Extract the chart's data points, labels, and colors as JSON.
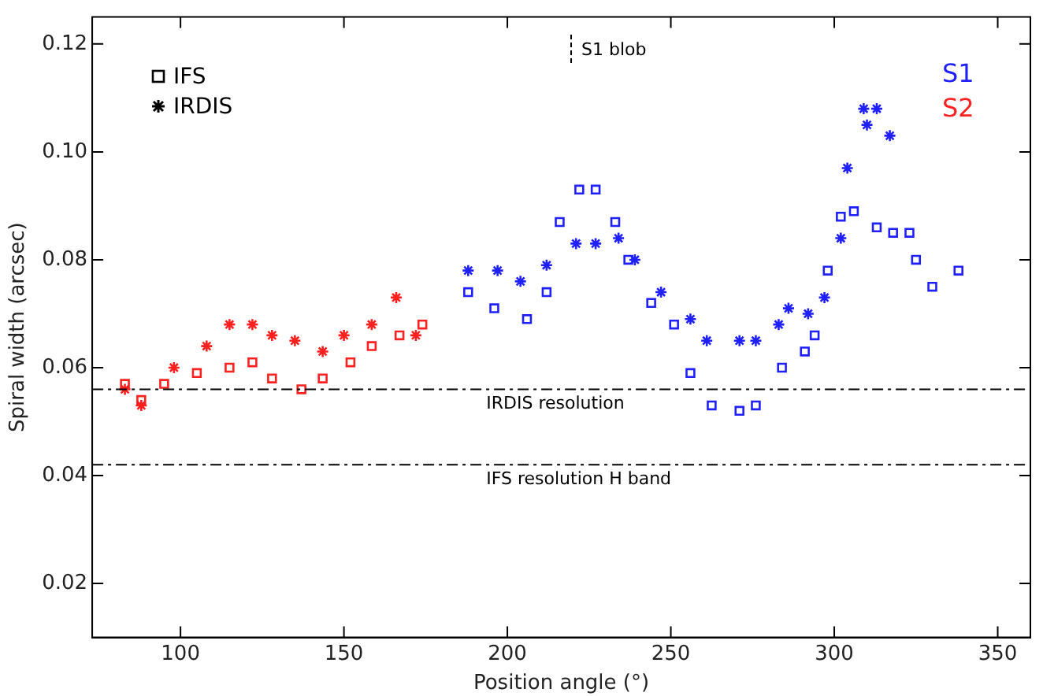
{
  "chart_data": {
    "type": "scatter",
    "xlabel": "Position angle (°)",
    "ylabel": "Spiral width (arcsec)",
    "xlim": [
      73,
      360
    ],
    "xticks": [
      100,
      150,
      200,
      250,
      300,
      350
    ],
    "ylim": [
      0.01,
      0.125
    ],
    "yticks": [
      0.02,
      0.04,
      0.06,
      0.08,
      {
        "value": 0.1,
        "label": "0.10"
      },
      0.12
    ],
    "grid": false,
    "series": [
      {
        "color": "#ff2020",
        "marker": "square",
        "x": [
          83,
          88,
          95,
          105,
          115,
          122,
          128,
          137,
          143.5,
          152,
          158.5,
          167,
          174
        ],
        "values": [
          0.057,
          0.054,
          0.057,
          0.059,
          0.06,
          0.061,
          0.058,
          0.056,
          0.058,
          0.061,
          0.064,
          0.066,
          0.068
        ]
      },
      {
        "color": "#ff2020",
        "marker": "cross",
        "x": [
          83,
          88,
          98,
          108,
          115,
          122,
          128,
          135,
          143.5,
          150,
          158.5,
          166,
          172
        ],
        "values": [
          0.056,
          0.053,
          0.06,
          0.064,
          0.068,
          0.068,
          0.066,
          0.065,
          0.063,
          0.066,
          0.068,
          0.073,
          0.066
        ]
      },
      {
        "color": "#2020ff",
        "marker": "square",
        "x": [
          188,
          196,
          206,
          212,
          216,
          222,
          227,
          233,
          237,
          244,
          251,
          256,
          262.5,
          271,
          276,
          284,
          291,
          294,
          298,
          302,
          306,
          313,
          318,
          323,
          325,
          330,
          338
        ],
        "values": [
          0.074,
          0.071,
          0.069,
          0.074,
          0.087,
          0.093,
          0.093,
          0.087,
          0.08,
          0.072,
          0.068,
          0.059,
          0.053,
          0.052,
          0.053,
          0.06,
          0.063,
          0.066,
          0.078,
          0.088,
          0.089,
          0.086,
          0.085,
          0.085,
          0.08,
          0.075,
          0.078
        ]
      },
      {
        "color": "#2020ff",
        "marker": "cross",
        "x": [
          188,
          197,
          204,
          212,
          221,
          227,
          234,
          239,
          247,
          256,
          261,
          271,
          276,
          283,
          286,
          292,
          297,
          302,
          304,
          309,
          310,
          313,
          317
        ],
        "values": [
          0.078,
          0.078,
          0.076,
          0.079,
          0.083,
          0.083,
          0.084,
          0.08,
          0.074,
          0.069,
          0.065,
          0.065,
          0.065,
          0.068,
          0.071,
          0.07,
          0.073,
          0.084,
          0.097,
          0.108,
          0.105,
          0.108,
          0.103
        ]
      }
    ],
    "ref_lines": [
      {
        "axis": "y",
        "value": 0.056,
        "label": "IRDIS resolution",
        "color": "#000000"
      },
      {
        "axis": "y",
        "value": 0.042,
        "label": "IFS resolution H band",
        "color": "#000000"
      }
    ],
    "annotations": [
      "IFS",
      "IRDIS",
      "S1",
      "S2",
      "S1 blob"
    ]
  }
}
